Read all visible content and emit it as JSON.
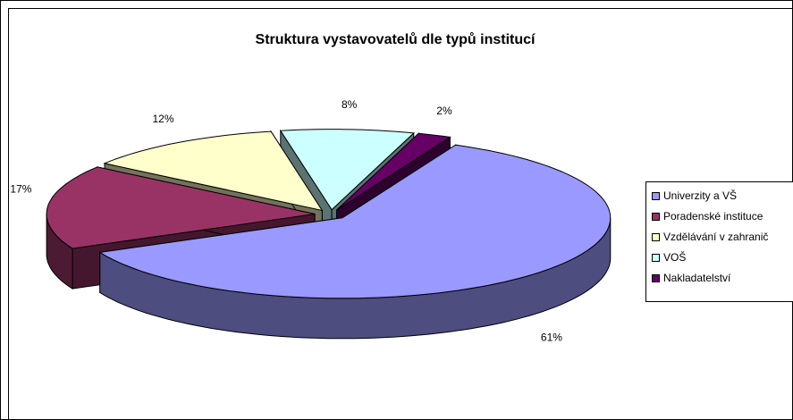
{
  "chart_data": {
    "type": "pie",
    "title": "Struktura vystavovatelů dle typů institucí",
    "categories": [
      "Univerzity a VŠ",
      "Poradenské instituce",
      "Vzdělávání v zahranič",
      "VOŠ",
      "Nakladatelství"
    ],
    "values": [
      61,
      17,
      12,
      8,
      2
    ],
    "value_labels": [
      "61%",
      "17%",
      "12%",
      "8%",
      "2%"
    ],
    "colors": [
      "#9999FF",
      "#993366",
      "#FFFFCC",
      "#CCFFFF",
      "#660066"
    ],
    "legend": "right"
  }
}
